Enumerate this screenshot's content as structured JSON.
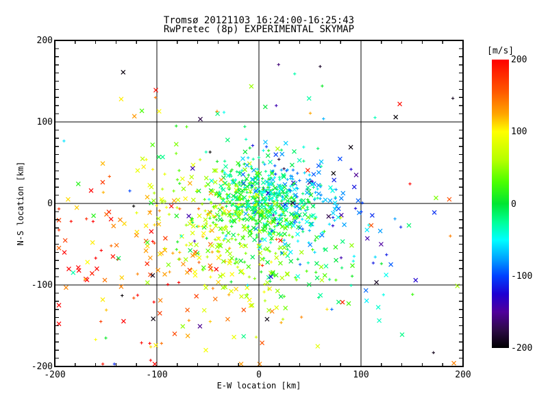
{
  "chart_data": {
    "type": "scatter",
    "title": "Tromsø 20121103 16:24:00-16:25:43",
    "subtitle": "RwPretec (8p) EXPERIMENTAL SKYMAP",
    "xlabel": "E-W location [km]",
    "ylabel": "N-S location [km]",
    "xlim": [
      -200,
      200
    ],
    "ylim": [
      -200,
      200
    ],
    "x_major_ticks": [
      -200,
      -100,
      0,
      100,
      200
    ],
    "y_major_ticks": [
      -200,
      -100,
      0,
      100,
      200
    ],
    "x_minor_step": 20,
    "y_minor_step": 10,
    "grid_lines": [
      -100,
      0,
      100
    ],
    "grid": true,
    "legend_position": "none",
    "axis_color": "#000000",
    "colorbar": {
      "unit": "[m/s]",
      "min": -200,
      "max": 200,
      "ticks": [
        200,
        100,
        0,
        -100,
        -200
      ],
      "stops": [
        [
          200,
          "#ff0000"
        ],
        [
          155,
          "#ff5a00"
        ],
        [
          125,
          "#ffa500"
        ],
        [
          100,
          "#ffff00"
        ],
        [
          60,
          "#b4ff00"
        ],
        [
          30,
          "#4bff00"
        ],
        [
          0,
          "#00e632"
        ],
        [
          -25,
          "#00ff96"
        ],
        [
          -50,
          "#00ffff"
        ],
        [
          -78,
          "#009bff"
        ],
        [
          -100,
          "#0041ff"
        ],
        [
          -125,
          "#1e00d2"
        ],
        [
          -150,
          "#50009b"
        ],
        [
          -175,
          "#2d0a46"
        ],
        [
          -200,
          "#000000"
        ]
      ]
    },
    "marker_types": [
      "x",
      "dot"
    ],
    "marker_sizes": {
      "x_half": 3,
      "plus_half": 2.2
    },
    "points_seed": 20121103,
    "clusters": [
      {
        "name": "core",
        "n": 520,
        "cx": 6,
        "cy": 4,
        "sx": 30,
        "sy": 24,
        "v_base": -8,
        "v_dx": -0.85,
        "v_dy": -0.5,
        "v_noise": 40,
        "x_frac": 0.4
      },
      {
        "name": "mid",
        "n": 380,
        "cx": -15,
        "cy": -28,
        "sx": 58,
        "sy": 48,
        "v_base": 5,
        "v_dx": -0.85,
        "v_dy": -0.5,
        "v_noise": 38,
        "x_frac": 0.55
      },
      {
        "name": "outer",
        "n": 200,
        "cx": -35,
        "cy": -50,
        "sx": 90,
        "sy": 70,
        "v_base": 15,
        "v_dx": -0.85,
        "v_dy": -0.5,
        "v_noise": 45,
        "x_frac": 0.6
      },
      {
        "name": "sprinkle",
        "n": 55,
        "cx": -5,
        "cy": -15,
        "sx": 100,
        "sy": 85,
        "v_uniform": [
          -205,
          205
        ],
        "x_frac": 0.5
      }
    ],
    "outlier_points": [
      [
        -133,
        161,
        -195,
        "x"
      ],
      [
        -135,
        128,
        105,
        "x"
      ],
      [
        -122,
        107,
        130,
        "x"
      ],
      [
        -101,
        139,
        195,
        "x"
      ],
      [
        -41,
        113,
        135,
        "dot"
      ],
      [
        -81,
        95,
        10,
        "dot"
      ],
      [
        35,
        159,
        -30,
        "dot"
      ],
      [
        62,
        144,
        5,
        "dot"
      ],
      [
        60,
        168,
        -185,
        "dot"
      ],
      [
        17,
        120,
        -140,
        "dot"
      ],
      [
        138,
        122,
        195,
        "x"
      ],
      [
        134,
        106,
        -198,
        "x"
      ],
      [
        90,
        69,
        -195,
        "x"
      ],
      [
        73,
        37,
        -198,
        "x"
      ],
      [
        190,
        129,
        -190,
        "dot"
      ],
      [
        148,
        24,
        198,
        "dot"
      ],
      [
        110,
        -27,
        160,
        "x"
      ],
      [
        147,
        -27,
        -15,
        "x"
      ],
      [
        139,
        -29,
        -110,
        "dot"
      ],
      [
        112,
        -73,
        -115,
        "dot"
      ],
      [
        122,
        -112,
        -45,
        "dot"
      ],
      [
        8,
        -142,
        -195,
        "x"
      ],
      [
        -15,
        -163,
        -20,
        "x"
      ],
      [
        -52,
        -180,
        95,
        "x"
      ],
      [
        -160,
        -167,
        100,
        "dot"
      ],
      [
        -150,
        -165,
        5,
        "dot"
      ],
      [
        -115,
        -171,
        195,
        "dot"
      ],
      [
        -106,
        -176,
        110,
        "dot"
      ],
      [
        -101,
        -174,
        105,
        "x"
      ],
      [
        -102,
        -197,
        198,
        "x"
      ],
      [
        171,
        -183,
        -190,
        "dot"
      ],
      [
        191,
        -196,
        140,
        "x"
      ],
      [
        -187,
        5,
        110,
        "x"
      ],
      [
        -184,
        -22,
        195,
        "dot"
      ],
      [
        -182,
        -85,
        -30,
        "x"
      ],
      [
        -162,
        -15,
        15,
        "x"
      ],
      [
        -136,
        -20,
        140,
        "x"
      ],
      [
        -120,
        -39,
        135,
        "x"
      ],
      [
        -163,
        -48,
        105,
        "x"
      ],
      [
        -143,
        -65,
        190,
        "x"
      ],
      [
        -168,
        -72,
        100,
        "x"
      ],
      [
        -151,
        -94,
        145,
        "x"
      ],
      [
        -135,
        -102,
        140,
        "x"
      ],
      [
        -134,
        -113,
        -198,
        "dot"
      ],
      [
        -153,
        -118,
        105,
        "x"
      ],
      [
        -177,
        24,
        15,
        "x"
      ],
      [
        -153,
        49,
        120,
        "x"
      ]
    ]
  }
}
